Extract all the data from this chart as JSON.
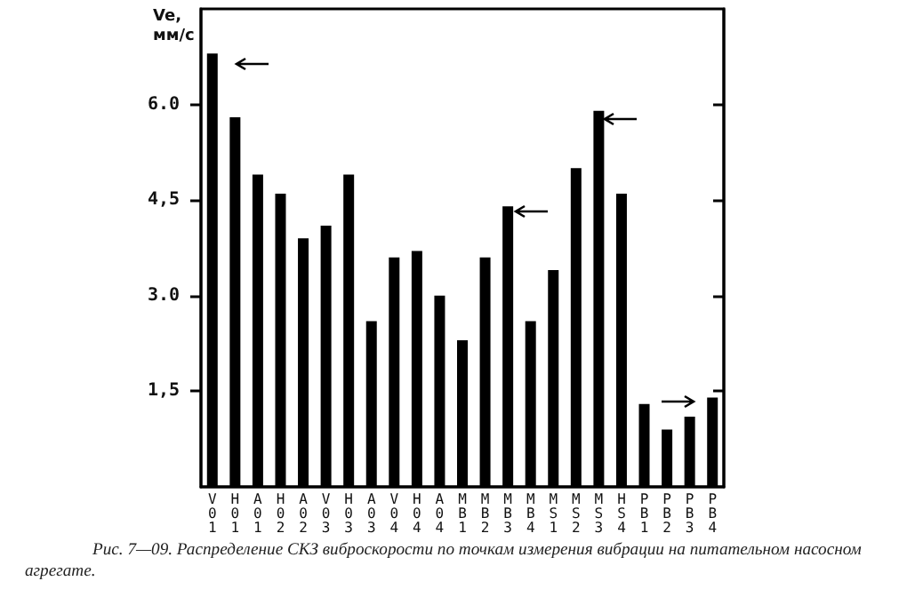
{
  "chart_data": {
    "type": "bar",
    "ylabel": "Ve, мм/с",
    "categories": [
      "V01",
      "H01",
      "A01",
      "H02",
      "A02",
      "V03",
      "H03",
      "A03",
      "V04",
      "H04",
      "A04",
      "MB1",
      "MB2",
      "MB3",
      "MB4",
      "MS1",
      "MS2",
      "MS3",
      "HS4",
      "PB1",
      "PB2",
      "PB3",
      "PB4"
    ],
    "values": [
      6.8,
      5.8,
      4.9,
      4.6,
      3.9,
      4.1,
      4.9,
      2.6,
      3.6,
      3.7,
      3.0,
      2.3,
      3.6,
      4.4,
      2.6,
      3.4,
      5.0,
      5.9,
      4.6,
      1.3,
      0.9,
      1.1,
      1.4
    ],
    "color": "#000000",
    "ylim": [
      0,
      7.5
    ],
    "yticks": [
      {
        "value": 1.5,
        "label": "1,5"
      },
      {
        "value": 3,
        "label": "3.0"
      },
      {
        "value": 4.5,
        "label": "4,5"
      },
      {
        "value": 6,
        "label": "6.0"
      }
    ],
    "annotations": [
      "Рис. 7—09. Распределение СКЗ виброскорости по точкам измерения вибрации на питательном насосном агрегате."
    ]
  }
}
